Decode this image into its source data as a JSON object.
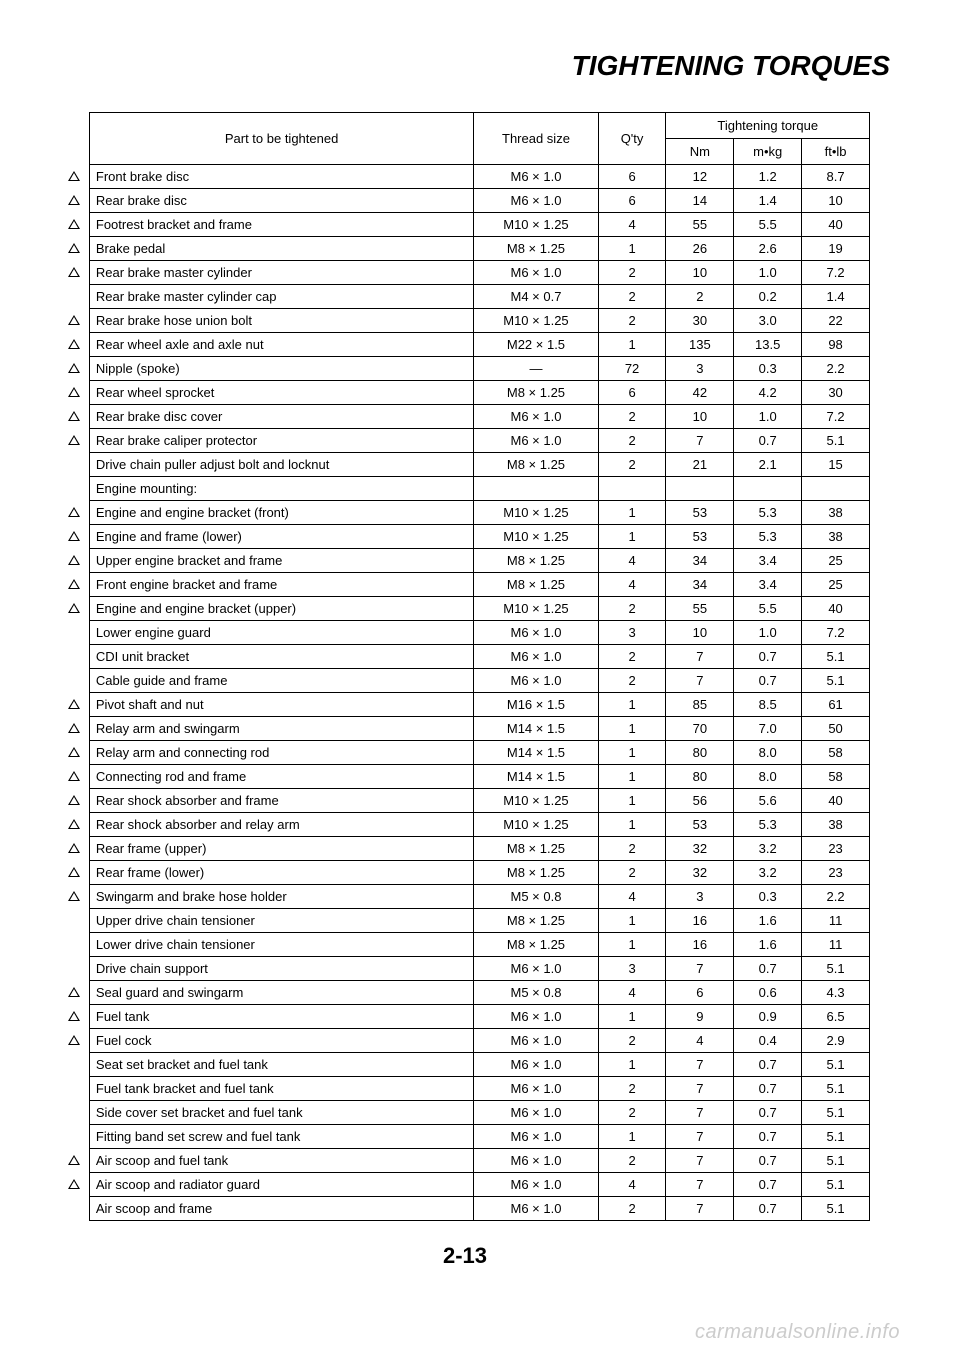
{
  "title": "TIGHTENING TORQUES",
  "page_number": "2-13",
  "watermark": "carmanualsonline.info",
  "headers": {
    "part": "Part to be tightened",
    "thread": "Thread size",
    "qty": "Q'ty",
    "torque_group": "Tightening torque",
    "nm": "Nm",
    "mkg": "m•kg",
    "ftlb": "ft•lb"
  },
  "rows": [
    {
      "mark": true,
      "part": "Front brake disc",
      "thread": "M6 × 1.0",
      "qty": "6",
      "nm": "12",
      "mkg": "1.2",
      "ftlb": "8.7"
    },
    {
      "mark": true,
      "part": "Rear brake disc",
      "thread": "M6 × 1.0",
      "qty": "6",
      "nm": "14",
      "mkg": "1.4",
      "ftlb": "10"
    },
    {
      "mark": true,
      "part": "Footrest bracket and frame",
      "thread": "M10 × 1.25",
      "qty": "4",
      "nm": "55",
      "mkg": "5.5",
      "ftlb": "40"
    },
    {
      "mark": true,
      "part": "Brake pedal",
      "thread": "M8 × 1.25",
      "qty": "1",
      "nm": "26",
      "mkg": "2.6",
      "ftlb": "19"
    },
    {
      "mark": true,
      "part": "Rear brake master cylinder",
      "thread": "M6 × 1.0",
      "qty": "2",
      "nm": "10",
      "mkg": "1.0",
      "ftlb": "7.2"
    },
    {
      "mark": false,
      "part": "Rear brake master cylinder cap",
      "thread": "M4 × 0.7",
      "qty": "2",
      "nm": "2",
      "mkg": "0.2",
      "ftlb": "1.4"
    },
    {
      "mark": true,
      "part": "Rear brake hose union bolt",
      "thread": "M10 × 1.25",
      "qty": "2",
      "nm": "30",
      "mkg": "3.0",
      "ftlb": "22"
    },
    {
      "mark": true,
      "part": "Rear wheel axle and axle nut",
      "thread": "M22 × 1.5",
      "qty": "1",
      "nm": "135",
      "mkg": "13.5",
      "ftlb": "98"
    },
    {
      "mark": true,
      "part": "Nipple (spoke)",
      "thread": "—",
      "qty": "72",
      "nm": "3",
      "mkg": "0.3",
      "ftlb": "2.2"
    },
    {
      "mark": true,
      "part": "Rear wheel sprocket",
      "thread": "M8 × 1.25",
      "qty": "6",
      "nm": "42",
      "mkg": "4.2",
      "ftlb": "30"
    },
    {
      "mark": true,
      "part": "Rear brake disc cover",
      "thread": "M6 × 1.0",
      "qty": "2",
      "nm": "10",
      "mkg": "1.0",
      "ftlb": "7.2"
    },
    {
      "mark": true,
      "part": "Rear brake caliper protector",
      "thread": "M6 × 1.0",
      "qty": "2",
      "nm": "7",
      "mkg": "0.7",
      "ftlb": "5.1"
    },
    {
      "mark": false,
      "part": "Drive chain puller adjust bolt and locknut",
      "thread": "M8 × 1.25",
      "qty": "2",
      "nm": "21",
      "mkg": "2.1",
      "ftlb": "15"
    },
    {
      "mark": false,
      "part": "Engine mounting:",
      "thread": "",
      "qty": "",
      "nm": "",
      "mkg": "",
      "ftlb": ""
    },
    {
      "mark": true,
      "part": "Engine and engine bracket (front)",
      "thread": "M10 × 1.25",
      "qty": "1",
      "nm": "53",
      "mkg": "5.3",
      "ftlb": "38"
    },
    {
      "mark": true,
      "part": "Engine and frame (lower)",
      "thread": "M10 × 1.25",
      "qty": "1",
      "nm": "53",
      "mkg": "5.3",
      "ftlb": "38"
    },
    {
      "mark": true,
      "part": "Upper engine bracket and frame",
      "thread": "M8 × 1.25",
      "qty": "4",
      "nm": "34",
      "mkg": "3.4",
      "ftlb": "25"
    },
    {
      "mark": true,
      "part": "Front engine bracket and frame",
      "thread": "M8 × 1.25",
      "qty": "4",
      "nm": "34",
      "mkg": "3.4",
      "ftlb": "25"
    },
    {
      "mark": true,
      "part": "Engine and engine bracket (upper)",
      "thread": "M10 × 1.25",
      "qty": "2",
      "nm": "55",
      "mkg": "5.5",
      "ftlb": "40"
    },
    {
      "mark": false,
      "part": "Lower engine guard",
      "thread": "M6 × 1.0",
      "qty": "3",
      "nm": "10",
      "mkg": "1.0",
      "ftlb": "7.2"
    },
    {
      "mark": false,
      "part": "CDI unit bracket",
      "thread": "M6 × 1.0",
      "qty": "2",
      "nm": "7",
      "mkg": "0.7",
      "ftlb": "5.1"
    },
    {
      "mark": false,
      "part": "Cable guide and frame",
      "thread": "M6 × 1.0",
      "qty": "2",
      "nm": "7",
      "mkg": "0.7",
      "ftlb": "5.1"
    },
    {
      "mark": true,
      "part": "Pivot shaft and nut",
      "thread": "M16 × 1.5",
      "qty": "1",
      "nm": "85",
      "mkg": "8.5",
      "ftlb": "61"
    },
    {
      "mark": true,
      "part": "Relay arm and swingarm",
      "thread": "M14 × 1.5",
      "qty": "1",
      "nm": "70",
      "mkg": "7.0",
      "ftlb": "50"
    },
    {
      "mark": true,
      "part": "Relay arm and connecting rod",
      "thread": "M14 × 1.5",
      "qty": "1",
      "nm": "80",
      "mkg": "8.0",
      "ftlb": "58"
    },
    {
      "mark": true,
      "part": "Connecting rod and frame",
      "thread": "M14 × 1.5",
      "qty": "1",
      "nm": "80",
      "mkg": "8.0",
      "ftlb": "58"
    },
    {
      "mark": true,
      "part": "Rear shock absorber and frame",
      "thread": "M10 × 1.25",
      "qty": "1",
      "nm": "56",
      "mkg": "5.6",
      "ftlb": "40"
    },
    {
      "mark": true,
      "part": "Rear shock absorber and relay arm",
      "thread": "M10 × 1.25",
      "qty": "1",
      "nm": "53",
      "mkg": "5.3",
      "ftlb": "38"
    },
    {
      "mark": true,
      "part": "Rear frame (upper)",
      "thread": "M8 × 1.25",
      "qty": "2",
      "nm": "32",
      "mkg": "3.2",
      "ftlb": "23"
    },
    {
      "mark": true,
      "part": "Rear frame (lower)",
      "thread": "M8 × 1.25",
      "qty": "2",
      "nm": "32",
      "mkg": "3.2",
      "ftlb": "23"
    },
    {
      "mark": true,
      "part": "Swingarm and brake hose holder",
      "thread": "M5 × 0.8",
      "qty": "4",
      "nm": "3",
      "mkg": "0.3",
      "ftlb": "2.2"
    },
    {
      "mark": false,
      "part": "Upper drive chain tensioner",
      "thread": "M8 × 1.25",
      "qty": "1",
      "nm": "16",
      "mkg": "1.6",
      "ftlb": "11"
    },
    {
      "mark": false,
      "part": "Lower drive chain tensioner",
      "thread": "M8 × 1.25",
      "qty": "1",
      "nm": "16",
      "mkg": "1.6",
      "ftlb": "11"
    },
    {
      "mark": false,
      "part": "Drive chain support",
      "thread": "M6 × 1.0",
      "qty": "3",
      "nm": "7",
      "mkg": "0.7",
      "ftlb": "5.1"
    },
    {
      "mark": true,
      "part": "Seal guard and swingarm",
      "thread": "M5 × 0.8",
      "qty": "4",
      "nm": "6",
      "mkg": "0.6",
      "ftlb": "4.3"
    },
    {
      "mark": true,
      "part": "Fuel tank",
      "thread": "M6 × 1.0",
      "qty": "1",
      "nm": "9",
      "mkg": "0.9",
      "ftlb": "6.5"
    },
    {
      "mark": true,
      "part": "Fuel cock",
      "thread": "M6 × 1.0",
      "qty": "2",
      "nm": "4",
      "mkg": "0.4",
      "ftlb": "2.9"
    },
    {
      "mark": false,
      "part": "Seat set bracket and fuel tank",
      "thread": "M6 × 1.0",
      "qty": "1",
      "nm": "7",
      "mkg": "0.7",
      "ftlb": "5.1"
    },
    {
      "mark": false,
      "part": "Fuel tank bracket and fuel tank",
      "thread": "M6 × 1.0",
      "qty": "2",
      "nm": "7",
      "mkg": "0.7",
      "ftlb": "5.1"
    },
    {
      "mark": false,
      "part": "Side cover set bracket and fuel tank",
      "thread": "M6 × 1.0",
      "qty": "2",
      "nm": "7",
      "mkg": "0.7",
      "ftlb": "5.1"
    },
    {
      "mark": false,
      "part": "Fitting band set screw and fuel tank",
      "thread": "M6 × 1.0",
      "qty": "1",
      "nm": "7",
      "mkg": "0.7",
      "ftlb": "5.1"
    },
    {
      "mark": true,
      "part": "Air scoop and fuel tank",
      "thread": "M6 × 1.0",
      "qty": "2",
      "nm": "7",
      "mkg": "0.7",
      "ftlb": "5.1"
    },
    {
      "mark": true,
      "part": "Air scoop and radiator guard",
      "thread": "M6 × 1.0",
      "qty": "4",
      "nm": "7",
      "mkg": "0.7",
      "ftlb": "5.1"
    },
    {
      "mark": false,
      "part": "Air scoop and frame",
      "thread": "M6 × 1.0",
      "qty": "2",
      "nm": "7",
      "mkg": "0.7",
      "ftlb": "5.1"
    }
  ]
}
